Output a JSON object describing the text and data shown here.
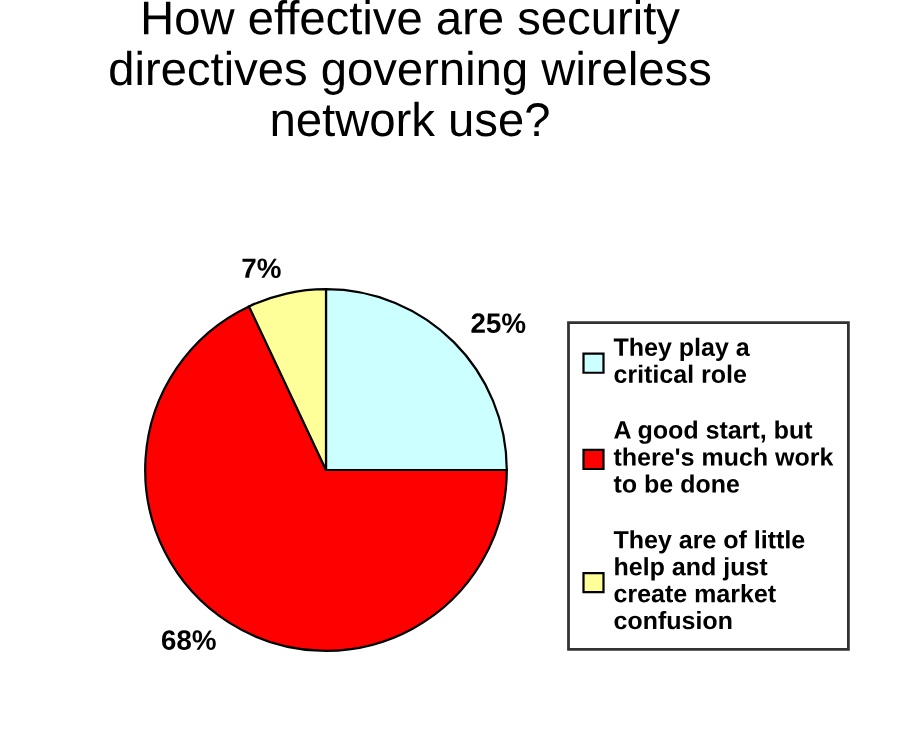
{
  "chart_data": {
    "type": "pie",
    "title": "How effective are security directives governing wireless network use?",
    "categories": [
      "They play a critical role",
      "A good start, but there's much work to be done",
      "They are of little help and just create market confusion"
    ],
    "values": [
      25,
      68,
      7
    ],
    "colors": [
      "#ccffff",
      "#ff0000",
      "#ffff99"
    ],
    "value_labels": [
      "25%",
      "68%",
      "7%"
    ],
    "legend": "right"
  }
}
